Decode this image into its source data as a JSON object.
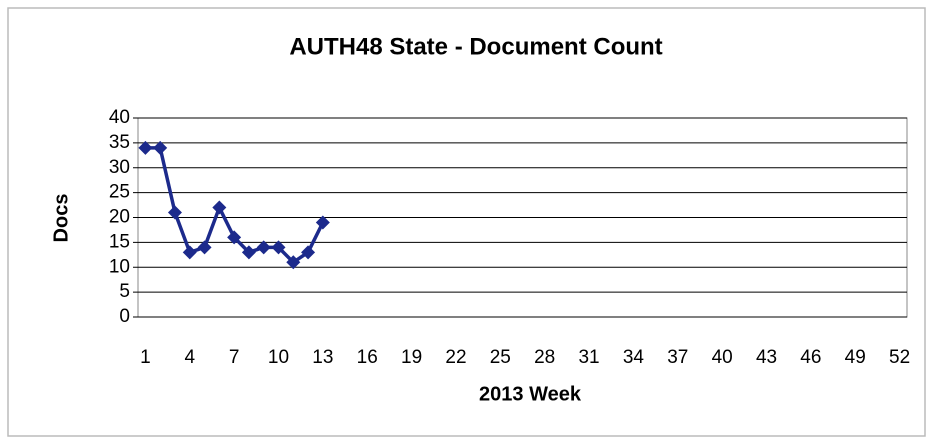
{
  "chart_data": {
    "type": "line",
    "title": "AUTH48 State - Document Count",
    "xlabel": "2013 Week",
    "ylabel": "Docs",
    "x": [
      1,
      2,
      3,
      4,
      5,
      6,
      7,
      8,
      9,
      10,
      11,
      12,
      13
    ],
    "series": [
      {
        "name": "Docs",
        "color": "#1c2a8c",
        "values": [
          34,
          34,
          21,
          13,
          14,
          22,
          16,
          13,
          14,
          14,
          11,
          13,
          19
        ]
      }
    ],
    "xlim": [
      0.5,
      52.5
    ],
    "xticks": [
      1,
      4,
      7,
      10,
      13,
      16,
      19,
      22,
      25,
      28,
      31,
      34,
      37,
      40,
      43,
      46,
      49,
      52
    ],
    "ylim": [
      0,
      40
    ],
    "yticks": [
      0,
      5,
      10,
      15,
      20,
      25,
      30,
      35,
      40
    ],
    "grid": true
  }
}
